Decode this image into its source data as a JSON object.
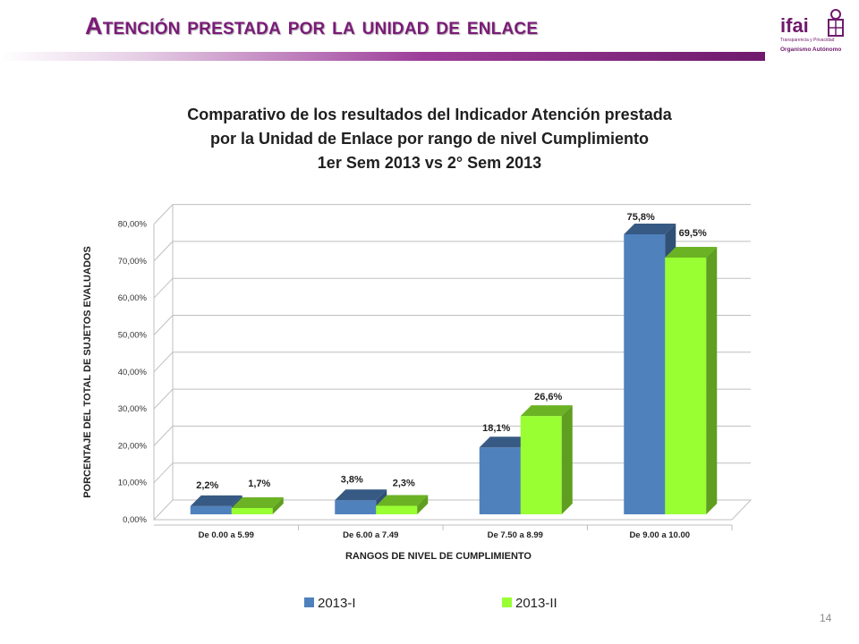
{
  "slide": {
    "title": "Atención prestada por la unidad de enlace",
    "page_number": "14"
  },
  "logo": {
    "name": "ifai",
    "line1": "Transparencia y Privacidad",
    "line2": "Organismo Autónomo"
  },
  "colors": {
    "title": "#7b1a78",
    "series1": "#4f81bd",
    "series2": "#99ff33"
  },
  "chart_data": {
    "type": "bar",
    "title_lines": [
      "Comparativo de los resultados del Indicador Atención prestada",
      "por la Unidad de Enlace  por rango de nivel Cumplimiento",
      "1er Sem 2013 vs 2° Sem 2013"
    ],
    "xlabel": "RANGOS DE NIVEL DE CUMPLIMIENTO",
    "ylabel": "PORCENTAJE DEL TOTAL DE SUJETOS EVALUADOS",
    "categories": [
      "De 0.00 a 5.99",
      "De 6.00 a 7.49",
      "De 7.50 a 8.99",
      "De 9.00 a 10.00"
    ],
    "ylim": [
      0,
      80
    ],
    "yticks": [
      "0,00%",
      "10,00%",
      "20,00%",
      "30,00%",
      "40,00%",
      "50,00%",
      "60,00%",
      "70,00%",
      "80,00%"
    ],
    "grid": true,
    "legend_position": "bottom",
    "series": [
      {
        "name": "2013-I",
        "values": [
          2.2,
          3.8,
          18.1,
          75.8
        ],
        "labels": [
          "2,2%",
          "3,8%",
          "18,1%",
          "75,8%"
        ]
      },
      {
        "name": "2013-II",
        "values": [
          1.7,
          2.3,
          26.6,
          69.5
        ],
        "labels": [
          "1,7%",
          "2,3%",
          "26,6%",
          "69,5%"
        ]
      }
    ]
  }
}
